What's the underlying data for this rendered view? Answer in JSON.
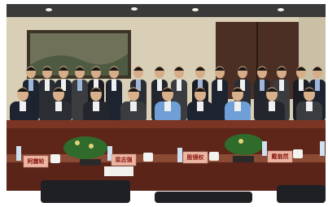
{
  "name_plates": [
    "阿震轮",
    "梁志强",
    "殷镜权",
    "戴翁然"
  ]
}
